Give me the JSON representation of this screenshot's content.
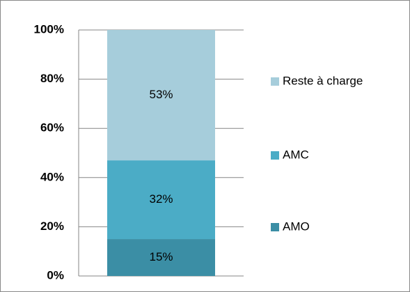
{
  "chart_data": {
    "type": "stacked_bar",
    "categories": [
      null
    ],
    "series": [
      {
        "name": "AMO",
        "color": "#3b8ea5",
        "values": [
          15
        ],
        "value_labels": [
          "15%"
        ]
      },
      {
        "name": "AMC",
        "color": "#4bacc6",
        "values": [
          32
        ],
        "value_labels": [
          "32%"
        ]
      },
      {
        "name": "Reste à charge",
        "color": "#a6cddb",
        "values": [
          53
        ],
        "value_labels": [
          "53%"
        ]
      }
    ],
    "ylim": [
      0,
      100
    ],
    "yticks": [
      {
        "value": 0,
        "label": "0%"
      },
      {
        "value": 20,
        "label": "20%"
      },
      {
        "value": 40,
        "label": "40%"
      },
      {
        "value": 60,
        "label": "60%"
      },
      {
        "value": 80,
        "label": "80%"
      },
      {
        "value": 100,
        "label": "100%"
      }
    ],
    "grid": true,
    "legend": "right"
  }
}
